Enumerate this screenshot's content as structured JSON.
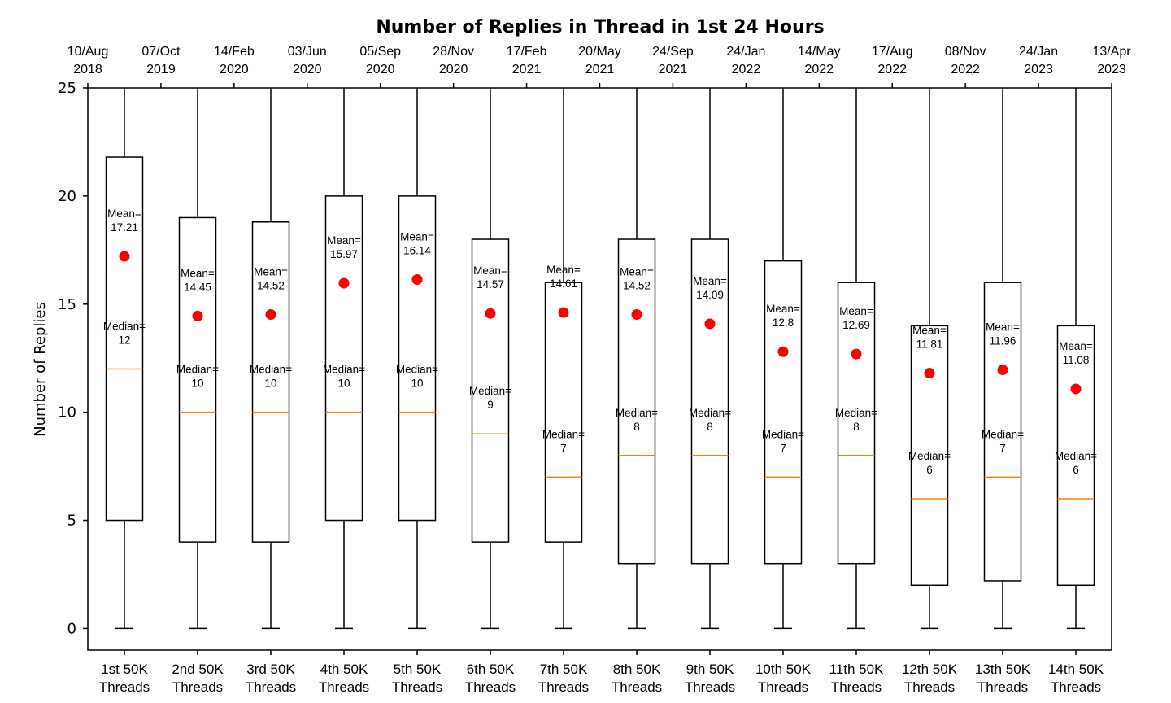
{
  "chart_data": {
    "type": "box",
    "title": "Number of Replies in Thread in 1st 24 Hours",
    "ylabel": "Number of Replies",
    "xlabel": "",
    "ylim": [
      -1,
      25
    ],
    "yticks": [
      0,
      5,
      10,
      15,
      20,
      25
    ],
    "grid": false,
    "colors": {
      "box": "#000000",
      "median_line": "#ff7f0e",
      "mean_marker": "#ff0000"
    },
    "mean_prefix": "Mean=",
    "median_prefix": "Median=",
    "top_axis_ticks": [
      {
        "date": "10/Aug",
        "year": "2018"
      },
      {
        "date": "07/Oct",
        "year": "2019"
      },
      {
        "date": "14/Feb",
        "year": "2020"
      },
      {
        "date": "03/Jun",
        "year": "2020"
      },
      {
        "date": "05/Sep",
        "year": "2020"
      },
      {
        "date": "28/Nov",
        "year": "2020"
      },
      {
        "date": "17/Feb",
        "year": "2021"
      },
      {
        "date": "20/May",
        "year": "2021"
      },
      {
        "date": "24/Sep",
        "year": "2021"
      },
      {
        "date": "24/Jan",
        "year": "2022"
      },
      {
        "date": "14/May",
        "year": "2022"
      },
      {
        "date": "17/Aug",
        "year": "2022"
      },
      {
        "date": "08/Nov",
        "year": "2022"
      },
      {
        "date": "24/Jan",
        "year": "2023"
      },
      {
        "date": "13/Apr",
        "year": "2023"
      }
    ],
    "boxes": [
      {
        "category": [
          "1st 50K",
          "Threads"
        ],
        "whisker_low": 0,
        "q1": 5,
        "median": 12,
        "q3": 21.8,
        "whisker_high": 25,
        "mean": 17.21,
        "mean_label": "17.21",
        "median_label": "12"
      },
      {
        "category": [
          "2nd 50K",
          "Threads"
        ],
        "whisker_low": 0,
        "q1": 4,
        "median": 10,
        "q3": 19,
        "whisker_high": 25,
        "mean": 14.45,
        "mean_label": "14.45",
        "median_label": "10"
      },
      {
        "category": [
          "3rd 50K",
          "Threads"
        ],
        "whisker_low": 0,
        "q1": 4,
        "median": 10,
        "q3": 18.8,
        "whisker_high": 25,
        "mean": 14.52,
        "mean_label": "14.52",
        "median_label": "10"
      },
      {
        "category": [
          "4th 50K",
          "Threads"
        ],
        "whisker_low": 0,
        "q1": 5,
        "median": 10,
        "q3": 20,
        "whisker_high": 25,
        "mean": 15.97,
        "mean_label": "15.97",
        "median_label": "10"
      },
      {
        "category": [
          "5th 50K",
          "Threads"
        ],
        "whisker_low": 0,
        "q1": 5,
        "median": 10,
        "q3": 20,
        "whisker_high": 25,
        "mean": 16.14,
        "mean_label": "16.14",
        "median_label": "10"
      },
      {
        "category": [
          "6th 50K",
          "Threads"
        ],
        "whisker_low": 0,
        "q1": 4,
        "median": 9,
        "q3": 18,
        "whisker_high": 25,
        "mean": 14.57,
        "mean_label": "14.57",
        "median_label": "9"
      },
      {
        "category": [
          "7th 50K",
          "Threads"
        ],
        "whisker_low": 0,
        "q1": 4,
        "median": 7,
        "q3": 16,
        "whisker_high": 25,
        "mean": 14.61,
        "mean_label": "14.61",
        "median_label": "7"
      },
      {
        "category": [
          "8th 50K",
          "Threads"
        ],
        "whisker_low": 0,
        "q1": 3,
        "median": 8,
        "q3": 18,
        "whisker_high": 25,
        "mean": 14.52,
        "mean_label": "14.52",
        "median_label": "8"
      },
      {
        "category": [
          "9th 50K",
          "Threads"
        ],
        "whisker_low": 0,
        "q1": 3,
        "median": 8,
        "q3": 18,
        "whisker_high": 25,
        "mean": 14.09,
        "mean_label": "14.09",
        "median_label": "8"
      },
      {
        "category": [
          "10th 50K",
          "Threads"
        ],
        "whisker_low": 0,
        "q1": 3,
        "median": 7,
        "q3": 17,
        "whisker_high": 25,
        "mean": 12.8,
        "mean_label": "12.8",
        "median_label": "7"
      },
      {
        "category": [
          "11th 50K",
          "Threads"
        ],
        "whisker_low": 0,
        "q1": 3,
        "median": 8,
        "q3": 16,
        "whisker_high": 25,
        "mean": 12.69,
        "mean_label": "12.69",
        "median_label": "8"
      },
      {
        "category": [
          "12th 50K",
          "Threads"
        ],
        "whisker_low": 0,
        "q1": 2,
        "median": 6,
        "q3": 14,
        "whisker_high": 25,
        "mean": 11.81,
        "mean_label": "11.81",
        "median_label": "6"
      },
      {
        "category": [
          "13th 50K",
          "Threads"
        ],
        "whisker_low": 0,
        "q1": 2.2,
        "median": 7,
        "q3": 16,
        "whisker_high": 25,
        "mean": 11.96,
        "mean_label": "11.96",
        "median_label": "7"
      },
      {
        "category": [
          "14th 50K",
          "Threads"
        ],
        "whisker_low": 0,
        "q1": 2,
        "median": 6,
        "q3": 14,
        "whisker_high": 25,
        "mean": 11.08,
        "mean_label": "11.08",
        "median_label": "6"
      }
    ]
  }
}
